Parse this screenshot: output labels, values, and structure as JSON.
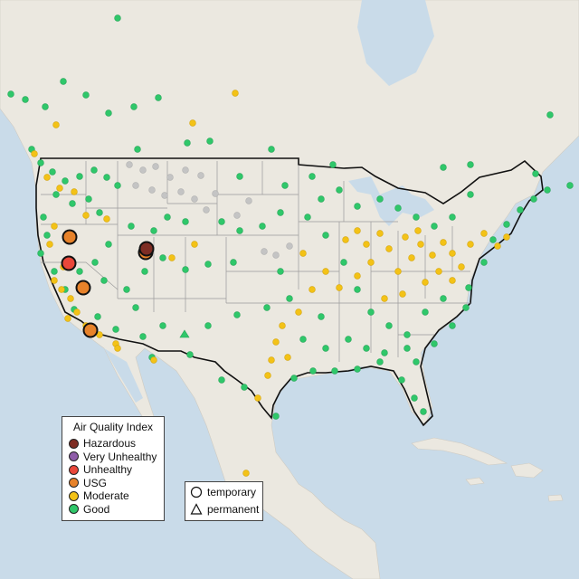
{
  "legend": {
    "title": "Air Quality Index",
    "items": [
      {
        "label": "Hazardous",
        "color": "#7e2d24"
      },
      {
        "label": "Very Unhealthy",
        "color": "#8e5ca8"
      },
      {
        "label": "Unhealthy",
        "color": "#e9473a"
      },
      {
        "label": "USG",
        "color": "#e7822a"
      },
      {
        "label": "Moderate",
        "color": "#f3c217"
      },
      {
        "label": "Good",
        "color": "#2fc76a"
      }
    ]
  },
  "monitor_type_legend": {
    "temporary": "temporary",
    "permanent": "permanent"
  },
  "colors": {
    "ocean": "#c9dbe9",
    "land": "#ebe8e0",
    "no_data": "#c4c4c4"
  }
}
